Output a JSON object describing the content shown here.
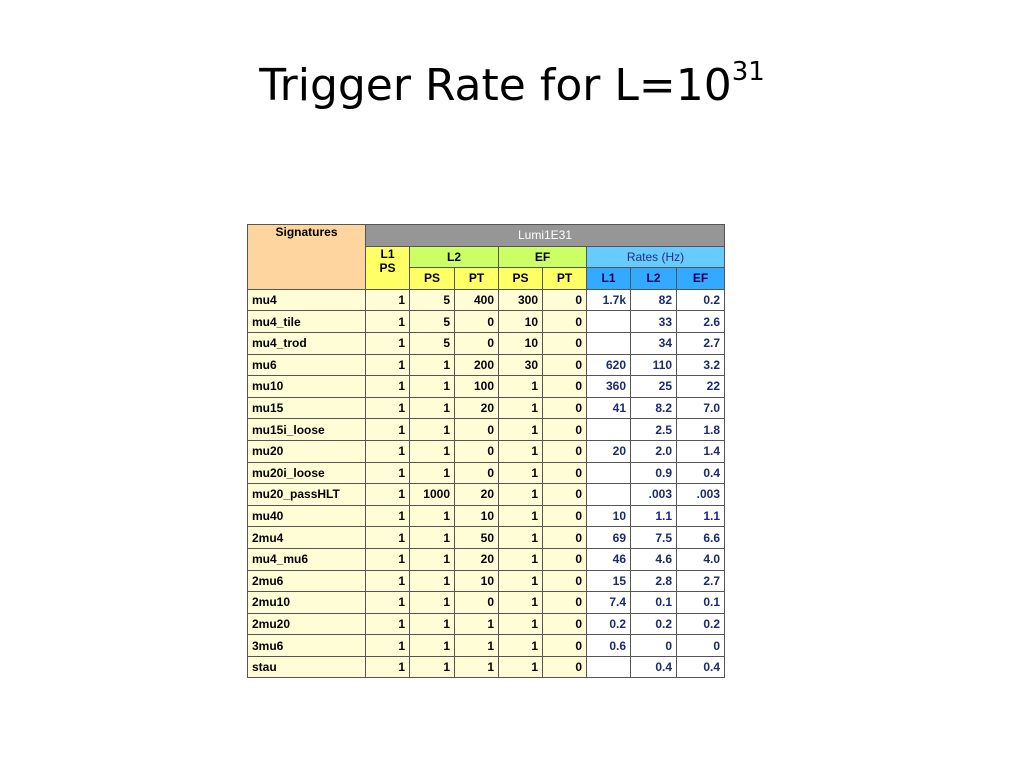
{
  "title": {
    "main": "Trigger Rate for L=10",
    "superscript": "31"
  },
  "table": {
    "headers": {
      "signatures": "Signatures",
      "lumi": "Lumi1E31",
      "l1": "L1",
      "l1_ps": "PS",
      "l2": "L2",
      "ef": "EF",
      "rates": "Rates (Hz)",
      "l2_ps": "PS",
      "l2_pt": "PT",
      "ef_ps": "PS",
      "ef_pt": "PT",
      "rate_l1": "L1",
      "rate_l2": "L2",
      "rate_ef": "EF"
    },
    "colors": {
      "signature_header": "#fed59e",
      "lumi_header": "#969696",
      "level_header": "#ffff66",
      "l2_ef_header": "#ccff66",
      "rates_header": "#66ccff",
      "rates_subheader": "#33aaff",
      "data_cell": "#fffdd6"
    },
    "rows": [
      {
        "sig": "mu4",
        "l1_ps": "1",
        "l2_ps": "5",
        "l2_pt": "400",
        "ef_ps": "300",
        "ef_pt": "0",
        "r_l1": "1.7k",
        "r_l2": "82",
        "r_ef": "0.2"
      },
      {
        "sig": "mu4_tile",
        "l1_ps": "1",
        "l2_ps": "5",
        "l2_pt": "0",
        "ef_ps": "10",
        "ef_pt": "0",
        "r_l1": "",
        "r_l2": "33",
        "r_ef": "2.6"
      },
      {
        "sig": "mu4_trod",
        "l1_ps": "1",
        "l2_ps": "5",
        "l2_pt": "0",
        "ef_ps": "10",
        "ef_pt": "0",
        "r_l1": "",
        "r_l2": "34",
        "r_ef": "2.7"
      },
      {
        "sig": "mu6",
        "l1_ps": "1",
        "l2_ps": "1",
        "l2_pt": "200",
        "ef_ps": "30",
        "ef_pt": "0",
        "r_l1": "620",
        "r_l2": "110",
        "r_ef": "3.2"
      },
      {
        "sig": "mu10",
        "l1_ps": "1",
        "l2_ps": "1",
        "l2_pt": "100",
        "ef_ps": "1",
        "ef_pt": "0",
        "r_l1": "360",
        "r_l2": "25",
        "r_ef": "22"
      },
      {
        "sig": "mu15",
        "l1_ps": "1",
        "l2_ps": "1",
        "l2_pt": "20",
        "ef_ps": "1",
        "ef_pt": "0",
        "r_l1": "41",
        "r_l2": "8.2",
        "r_ef": "7.0"
      },
      {
        "sig": "mu15i_loose",
        "l1_ps": "1",
        "l2_ps": "1",
        "l2_pt": "0",
        "ef_ps": "1",
        "ef_pt": "0",
        "r_l1": "",
        "r_l2": "2.5",
        "r_ef": "1.8"
      },
      {
        "sig": "mu20",
        "l1_ps": "1",
        "l2_ps": "1",
        "l2_pt": "0",
        "ef_ps": "1",
        "ef_pt": "0",
        "r_l1": "20",
        "r_l2": "2.0",
        "r_ef": "1.4"
      },
      {
        "sig": "mu20i_loose",
        "l1_ps": "1",
        "l2_ps": "1",
        "l2_pt": "0",
        "ef_ps": "1",
        "ef_pt": "0",
        "r_l1": "",
        "r_l2": "0.9",
        "r_ef": "0.4"
      },
      {
        "sig": "mu20_passHLT",
        "l1_ps": "1",
        "l2_ps": "1000",
        "l2_pt": "20",
        "ef_ps": "1",
        "ef_pt": "0",
        "r_l1": "",
        "r_l2": ".003",
        "r_ef": ".003"
      },
      {
        "sig": "mu40",
        "l1_ps": "1",
        "l2_ps": "1",
        "l2_pt": "10",
        "ef_ps": "1",
        "ef_pt": "0",
        "r_l1": "10",
        "r_l2": "1.1",
        "r_ef": "1.1"
      },
      {
        "sig": "2mu4",
        "l1_ps": "1",
        "l2_ps": "1",
        "l2_pt": "50",
        "ef_ps": "1",
        "ef_pt": "0",
        "r_l1": "69",
        "r_l2": "7.5",
        "r_ef": "6.6"
      },
      {
        "sig": "mu4_mu6",
        "l1_ps": "1",
        "l2_ps": "1",
        "l2_pt": "20",
        "ef_ps": "1",
        "ef_pt": "0",
        "r_l1": "46",
        "r_l2": "4.6",
        "r_ef": "4.0"
      },
      {
        "sig": "2mu6",
        "l1_ps": "1",
        "l2_ps": "1",
        "l2_pt": "10",
        "ef_ps": "1",
        "ef_pt": "0",
        "r_l1": "15",
        "r_l2": "2.8",
        "r_ef": "2.7"
      },
      {
        "sig": "2mu10",
        "l1_ps": "1",
        "l2_ps": "1",
        "l2_pt": "0",
        "ef_ps": "1",
        "ef_pt": "0",
        "r_l1": "7.4",
        "r_l2": "0.1",
        "r_ef": "0.1"
      },
      {
        "sig": "2mu20",
        "l1_ps": "1",
        "l2_ps": "1",
        "l2_pt": "1",
        "ef_ps": "1",
        "ef_pt": "0",
        "r_l1": "0.2",
        "r_l2": "0.2",
        "r_ef": "0.2"
      },
      {
        "sig": "3mu6",
        "l1_ps": "1",
        "l2_ps": "1",
        "l2_pt": "1",
        "ef_ps": "1",
        "ef_pt": "0",
        "r_l1": "0.6",
        "r_l2": "0",
        "r_ef": "0"
      },
      {
        "sig": "stau",
        "l1_ps": "1",
        "l2_ps": "1",
        "l2_pt": "1",
        "ef_ps": "1",
        "ef_pt": "0",
        "r_l1": "",
        "r_l2": "0.4",
        "r_ef": "0.4"
      }
    ]
  }
}
